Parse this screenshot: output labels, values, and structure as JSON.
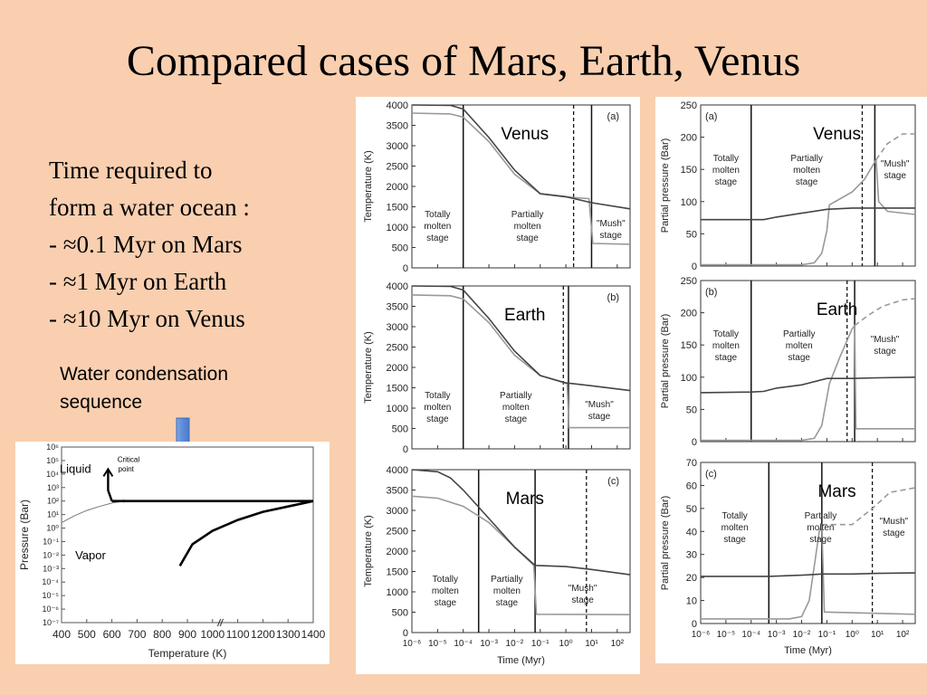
{
  "slide": {
    "title": "Compared cases of Mars, Earth, Venus",
    "bullets": [
      "Time required to",
      "form a water ocean :",
      "- ≈0.1 Myr on Mars",
      "- ≈1 Myr on Earth",
      "- ≈10 Myr on Venus"
    ],
    "caption_lines": [
      "Water condensation",
      "sequence"
    ],
    "arrow_color": "#5b8bd9"
  },
  "chart_data": [
    {
      "id": "phase",
      "type": "line",
      "xlabel": "Temperature (K)",
      "ylabel": "Pressure (Bar)",
      "xticks": [
        "400",
        "500",
        "600",
        "700",
        "800",
        "900",
        "1000",
        "1100",
        "1200",
        "1300",
        "1400"
      ],
      "yticks": [
        "10⁻⁷",
        "10⁻⁶",
        "10⁻⁵",
        "10⁻⁴",
        "10⁻³",
        "10⁻²",
        "10⁻¹",
        "10⁰",
        "10¹",
        "10²",
        "10³",
        "10⁴",
        "10⁵",
        "10⁶"
      ],
      "labels": {
        "liquid": "Liquid",
        "critical": "Critical",
        "point": "point",
        "vapor": "Vapor"
      },
      "curve_T": [
        400,
        450,
        500,
        550,
        600,
        647
      ],
      "curve_logP": [
        0.4,
        0.9,
        1.3,
        1.6,
        1.85,
        2.0
      ],
      "path_T": [
        600,
        1400
      ],
      "path_logP": [
        2.0,
        2.0
      ],
      "condensation_T": [
        870,
        920,
        1000,
        1100,
        1200,
        1300,
        1400
      ],
      "condensation_logP": [
        -2.8,
        -1.2,
        -0.2,
        0.6,
        1.2,
        1.6,
        2.0
      ]
    },
    {
      "id": "temperature",
      "type": "line",
      "xlabel": "Time (Myr)",
      "ylabel": "Temperature (K)",
      "yticks": [
        "0",
        "500",
        "1000",
        "1500",
        "2000",
        "2500",
        "3000",
        "3500",
        "4000"
      ],
      "xticks": [
        "10⁻⁶",
        "10⁻⁵",
        "10⁻⁴",
        "10⁻³",
        "10⁻²",
        "10⁻¹",
        "10⁰",
        "10¹",
        "10²"
      ],
      "panels": [
        {
          "planet": "Venus",
          "tag": "(a)",
          "stage_labels": {
            "molten": [
              "Totally",
              "molten",
              "stage"
            ],
            "partial": [
              "Partially",
              "molten",
              "stage"
            ],
            "mush": [
              "\"Mush\"",
              "stage"
            ]
          },
          "molten_end_log": -4.0,
          "dashed_log": 0.3,
          "solid_end_log": 1.0,
          "dark": [
            [
              -6,
              4000
            ],
            [
              -4.5,
              3990
            ],
            [
              -4,
              3900
            ],
            [
              -3,
              3200
            ],
            [
              -2,
              2400
            ],
            [
              -1,
              1820
            ],
            [
              0,
              1750
            ],
            [
              1,
              1600
            ],
            [
              2.5,
              1450
            ]
          ],
          "light": [
            [
              -6,
              3800
            ],
            [
              -4.5,
              3780
            ],
            [
              -4,
              3700
            ],
            [
              -3,
              3100
            ],
            [
              -2,
              2300
            ],
            [
              -1,
              1820
            ],
            [
              0,
              1740
            ],
            [
              0.9,
              1700
            ],
            [
              1.05,
              600
            ],
            [
              2.5,
              580
            ]
          ]
        },
        {
          "planet": "Earth",
          "tag": "(b)",
          "stage_labels": {
            "molten": [
              "Totally",
              "molten",
              "stage"
            ],
            "partial": [
              "Partially",
              "molten",
              "stage"
            ],
            "mush": [
              "\"Mush\"",
              "stage"
            ]
          },
          "molten_end_log": -4.0,
          "dashed_log": -0.1,
          "solid_end_log": 0.1,
          "dark": [
            [
              -6,
              4000
            ],
            [
              -4.5,
              3990
            ],
            [
              -4,
              3900
            ],
            [
              -3,
              3200
            ],
            [
              -2,
              2400
            ],
            [
              -1,
              1800
            ],
            [
              0,
              1620
            ],
            [
              1,
              1550
            ],
            [
              2.5,
              1430
            ]
          ],
          "light": [
            [
              -6,
              3780
            ],
            [
              -4.5,
              3760
            ],
            [
              -4,
              3680
            ],
            [
              -3,
              3100
            ],
            [
              -2,
              2300
            ],
            [
              -1,
              1800
            ],
            [
              0,
              1610
            ],
            [
              0.05,
              1600
            ],
            [
              0.12,
              520
            ],
            [
              2.5,
              520
            ]
          ]
        },
        {
          "planet": "Mars",
          "tag": "(c)",
          "stage_labels": {
            "molten": [
              "Totally",
              "molten",
              "stage"
            ],
            "partial": [
              "Partially",
              "molten",
              "stage"
            ],
            "mush": [
              "\"Mush\"",
              "stage"
            ]
          },
          "molten_end_log": -3.4,
          "dashed_log": 0.8,
          "solid_end_log": -1.2,
          "dark": [
            [
              -6,
              4000
            ],
            [
              -5,
              3950
            ],
            [
              -4.5,
              3800
            ],
            [
              -4,
              3500
            ],
            [
              -3,
              2800
            ],
            [
              -2,
              2100
            ],
            [
              -1.2,
              1650
            ],
            [
              0,
              1620
            ],
            [
              1,
              1550
            ],
            [
              2.5,
              1420
            ]
          ],
          "light": [
            [
              -6,
              3350
            ],
            [
              -5,
              3300
            ],
            [
              -4,
              3100
            ],
            [
              -3,
              2700
            ],
            [
              -2,
              2100
            ],
            [
              -1.25,
              1650
            ],
            [
              -1.15,
              450
            ],
            [
              2.5,
              440
            ]
          ]
        }
      ]
    },
    {
      "id": "pressure",
      "type": "line",
      "xlabel": "Time (Myr)",
      "ylabel": "Partial pressure (Bar)",
      "xticks": [
        "10⁻⁶",
        "10⁻⁵",
        "10⁻⁴",
        "10⁻³",
        "10⁻²",
        "10⁻¹",
        "10⁰",
        "10¹",
        "10²"
      ],
      "panels": [
        {
          "planet": "Venus",
          "tag": "(a)",
          "ymax": 250,
          "yticks": [
            "0",
            "50",
            "100",
            "150",
            "200",
            "250"
          ],
          "stage_labels": {
            "molten": [
              "Totally",
              "molten",
              "stage"
            ],
            "partial": [
              "Partially",
              "molten",
              "stage"
            ],
            "mush": [
              "\"Mush\"",
              "stage"
            ]
          },
          "molten_end_log": -4.0,
          "dashed_log": 0.4,
          "solid_end_log": 0.9,
          "dark": [
            [
              -6,
              72
            ],
            [
              -4,
              72
            ],
            [
              -3.5,
              72
            ],
            [
              -3,
              76
            ],
            [
              -2,
              82
            ],
            [
              -1,
              88
            ],
            [
              0,
              90
            ],
            [
              1,
              90
            ],
            [
              2.5,
              90
            ]
          ],
          "light": [
            [
              -6,
              2
            ],
            [
              -2,
              2
            ],
            [
              -1.5,
              5
            ],
            [
              -1.2,
              20
            ],
            [
              -1,
              55
            ],
            [
              -0.9,
              95
            ],
            [
              0,
              115
            ],
            [
              0.5,
              135
            ],
            [
              0.95,
              165
            ],
            [
              1.05,
              100
            ],
            [
              1.4,
              85
            ],
            [
              2.5,
              80
            ]
          ],
          "light_dashed": [
            [
              0.95,
              165
            ],
            [
              1.4,
              190
            ],
            [
              2.0,
              205
            ],
            [
              2.5,
              205
            ]
          ]
        },
        {
          "planet": "Earth",
          "tag": "(b)",
          "ymax": 250,
          "yticks": [
            "0",
            "50",
            "100",
            "150",
            "200",
            "250"
          ],
          "stage_labels": {
            "molten": [
              "Totally",
              "molten",
              "stage"
            ],
            "partial": [
              "Partially",
              "molten",
              "stage"
            ],
            "mush": [
              "\"Mush\"",
              "stage"
            ]
          },
          "molten_end_log": -4.0,
          "dashed_log": -0.2,
          "solid_end_log": 0.1,
          "dark": [
            [
              -6,
              76
            ],
            [
              -4,
              77
            ],
            [
              -3.5,
              78
            ],
            [
              -3,
              83
            ],
            [
              -2,
              88
            ],
            [
              -1,
              98
            ],
            [
              0,
              98
            ],
            [
              1,
              99
            ],
            [
              2.5,
              100
            ]
          ],
          "light": [
            [
              -6,
              2
            ],
            [
              -2,
              2
            ],
            [
              -1.5,
              5
            ],
            [
              -1.2,
              25
            ],
            [
              -0.9,
              90
            ],
            [
              -0.5,
              130
            ],
            [
              0,
              175
            ],
            [
              0.1,
              180
            ],
            [
              0.15,
              20
            ],
            [
              2.5,
              20
            ]
          ],
          "light_dashed": [
            [
              0.1,
              180
            ],
            [
              0.6,
              195
            ],
            [
              1.2,
              210
            ],
            [
              2.0,
              220
            ],
            [
              2.5,
              222
            ]
          ]
        },
        {
          "planet": "Mars",
          "tag": "(c)",
          "ymax": 70,
          "yticks": [
            "0",
            "10",
            "20",
            "30",
            "40",
            "50",
            "60",
            "70"
          ],
          "stage_labels": {
            "molten": [
              "Totally",
              "molten",
              "stage"
            ],
            "partial": [
              "Partially",
              "molten",
              "stage"
            ],
            "mush": [
              "\"Mush\"",
              "stage"
            ]
          },
          "molten_end_log": -3.3,
          "dashed_log": 0.8,
          "solid_end_log": -1.2,
          "dark": [
            [
              -6,
              20.5
            ],
            [
              -3.3,
              20.5
            ],
            [
              -2,
              21
            ],
            [
              -1.2,
              21.5
            ],
            [
              0,
              21.5
            ],
            [
              1,
              21.8
            ],
            [
              2.5,
              22
            ]
          ],
          "light": [
            [
              -6,
              2
            ],
            [
              -2.5,
              2
            ],
            [
              -2,
              3
            ],
            [
              -1.7,
              10
            ],
            [
              -1.5,
              25
            ],
            [
              -1.3,
              40
            ],
            [
              -1.2,
              43
            ],
            [
              -1.1,
              5
            ],
            [
              2.5,
              4
            ]
          ],
          "light_dashed": [
            [
              -1.2,
              43
            ],
            [
              0,
              43
            ],
            [
              0.8,
              50
            ],
            [
              1.5,
              57
            ],
            [
              2.5,
              59
            ]
          ]
        }
      ]
    }
  ]
}
